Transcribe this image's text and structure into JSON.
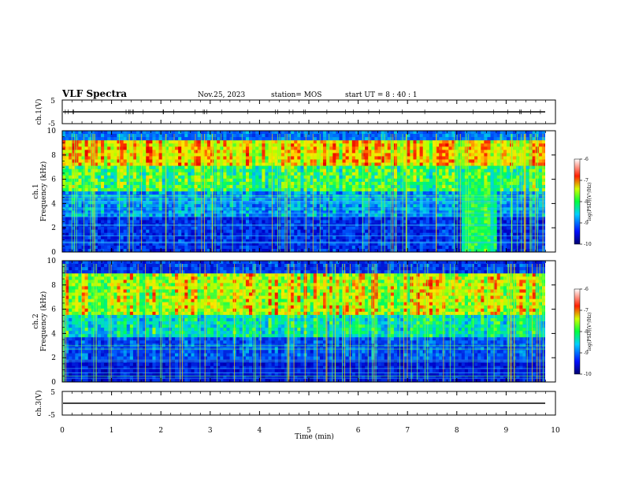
{
  "header": {
    "title": "VLF Spectra",
    "date": "Nov.25, 2023",
    "station": "station= MOS",
    "start": "start  UT =  8 : 40 : 1"
  },
  "chart_data": [
    {
      "type": "line",
      "panel": "ch1-waveform",
      "ylabel": "ch.1(V)",
      "ylim": [
        -5,
        5
      ],
      "y_ticks": [
        "5",
        "-5"
      ],
      "description_series": [
        {
          "values": [
            0,
            0
          ]
        }
      ]
    },
    {
      "type": "heatmap",
      "panel": "ch1-spectrogram",
      "ylabel": "ch.1\nFrequency (kHz)",
      "ylabel_lines": [
        "ch.1",
        "Frequency (kHz)"
      ],
      "ylim": [
        0,
        10
      ],
      "y_ticks": [
        "0",
        "2",
        "4",
        "6",
        "8",
        "10"
      ],
      "colorbar": {
        "label": "log(PSD)(V²/Hz)",
        "range": [
          -10,
          -6
        ],
        "ticks": [
          "-6",
          "-7",
          "-8",
          "-9",
          "-10"
        ]
      }
    },
    {
      "type": "heatmap",
      "panel": "ch2-spectrogram",
      "ylabel": "ch.2\nFrequency (kHz)",
      "ylabel_lines": [
        "ch.2",
        "Frequency (kHz)"
      ],
      "ylim": [
        0,
        10
      ],
      "y_ticks": [
        "0",
        "2",
        "4",
        "6",
        "8",
        "10"
      ],
      "colorbar": {
        "label": "log(PSD)(V²/Hz)",
        "range": [
          -10,
          -6
        ],
        "ticks": [
          "-6",
          "-7",
          "-8",
          "-9",
          "-10"
        ]
      }
    },
    {
      "type": "line",
      "panel": "ch3-waveform",
      "ylabel": "ch.3(V)",
      "ylim": [
        -5,
        5
      ],
      "y_ticks": [
        "5",
        "-5"
      ],
      "description_series": [
        {
          "values": [
            0,
            0
          ]
        }
      ]
    }
  ],
  "x_axis": {
    "label": "Time  (min)",
    "xlim": [
      0,
      10
    ],
    "ticks": [
      "0",
      "1",
      "2",
      "3",
      "4",
      "5",
      "6",
      "7",
      "8",
      "9",
      "10"
    ]
  },
  "colors": {
    "low": "#000080",
    "mid_low": "#0050ff",
    "mid": "#00e0e0",
    "mid_high": "#00ff40",
    "high": "#ffff00",
    "top": "#ff1010"
  }
}
